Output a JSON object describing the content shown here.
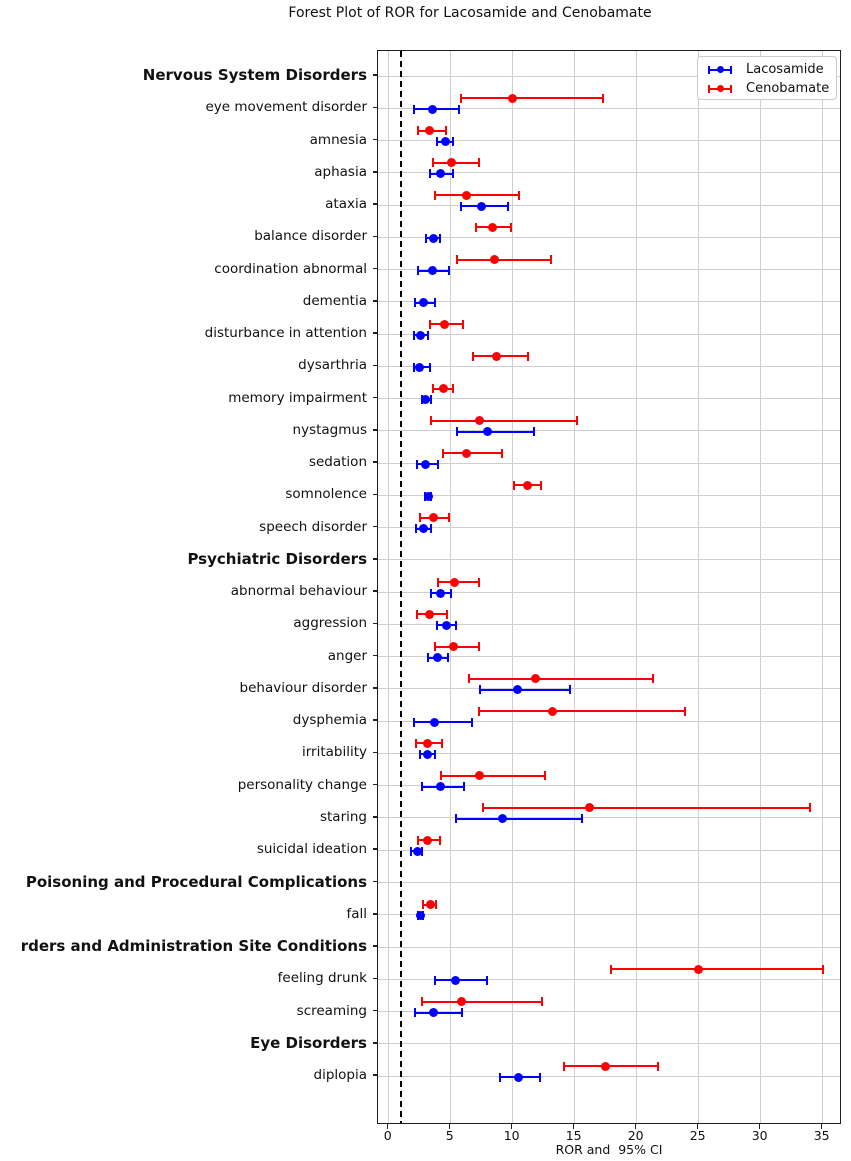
{
  "chart_data": {
    "type": "scatter",
    "variant": "forest-plot-errorbars",
    "title": "Forest Plot of ROR for Lacosamide and Cenobamate",
    "xlabel": "ROR and  95% CI",
    "xticks": [
      0,
      5,
      10,
      15,
      20,
      25,
      30,
      35
    ],
    "xlim": [
      -0.9,
      36.6
    ],
    "reference_line_x": 1,
    "grid": true,
    "legend_position": "top-right",
    "legend": {
      "items": [
        {
          "label": "Lacosamide",
          "color": "#0000ff"
        },
        {
          "label": "Cenobamate",
          "color": "#ff0000"
        }
      ]
    },
    "rows": [
      {
        "label": "Nervous System Disorders",
        "header": true,
        "lacosamide": null,
        "cenobamate": null
      },
      {
        "label": "eye movement disorder",
        "header": false,
        "lacosamide": {
          "ror": 3.5,
          "lo": 2.0,
          "hi": 5.7
        },
        "cenobamate": {
          "ror": 10.0,
          "lo": 5.8,
          "hi": 17.3
        }
      },
      {
        "label": "amnesia",
        "header": false,
        "lacosamide": {
          "ror": 4.6,
          "lo": 3.9,
          "hi": 5.2
        },
        "cenobamate": {
          "ror": 3.3,
          "lo": 2.4,
          "hi": 4.6
        }
      },
      {
        "label": "aphasia",
        "header": false,
        "lacosamide": {
          "ror": 4.2,
          "lo": 3.3,
          "hi": 5.2
        },
        "cenobamate": {
          "ror": 5.1,
          "lo": 3.6,
          "hi": 7.3
        }
      },
      {
        "label": "ataxia",
        "header": false,
        "lacosamide": {
          "ror": 7.5,
          "lo": 5.8,
          "hi": 9.6
        },
        "cenobamate": {
          "ror": 6.3,
          "lo": 3.7,
          "hi": 10.5
        }
      },
      {
        "label": "balance disorder",
        "header": false,
        "lacosamide": {
          "ror": 3.6,
          "lo": 3.0,
          "hi": 4.1
        },
        "cenobamate": {
          "ror": 8.4,
          "lo": 7.0,
          "hi": 9.9
        }
      },
      {
        "label": "coordination abnormal",
        "header": false,
        "lacosamide": {
          "ror": 3.5,
          "lo": 2.4,
          "hi": 4.9
        },
        "cenobamate": {
          "ror": 8.5,
          "lo": 5.5,
          "hi": 13.1
        }
      },
      {
        "label": "dementia",
        "header": false,
        "lacosamide": {
          "ror": 2.8,
          "lo": 2.1,
          "hi": 3.7
        },
        "cenobamate": null
      },
      {
        "label": "disturbance in attention",
        "header": false,
        "lacosamide": {
          "ror": 2.6,
          "lo": 2.0,
          "hi": 3.2
        },
        "cenobamate": {
          "ror": 4.5,
          "lo": 3.3,
          "hi": 6.0
        }
      },
      {
        "label": "dysarthria",
        "header": false,
        "lacosamide": {
          "ror": 2.5,
          "lo": 2.0,
          "hi": 3.3
        },
        "cenobamate": {
          "ror": 8.7,
          "lo": 6.8,
          "hi": 11.2
        }
      },
      {
        "label": "memory impairment",
        "header": false,
        "lacosamide": {
          "ror": 3.0,
          "lo": 2.7,
          "hi": 3.4
        },
        "cenobamate": {
          "ror": 4.4,
          "lo": 3.6,
          "hi": 5.2
        }
      },
      {
        "label": "nystagmus",
        "header": false,
        "lacosamide": {
          "ror": 8.0,
          "lo": 5.5,
          "hi": 11.7
        },
        "cenobamate": {
          "ror": 7.3,
          "lo": 3.4,
          "hi": 15.2
        }
      },
      {
        "label": "sedation",
        "header": false,
        "lacosamide": {
          "ror": 3.0,
          "lo": 2.3,
          "hi": 4.0
        },
        "cenobamate": {
          "ror": 6.3,
          "lo": 4.4,
          "hi": 9.1
        }
      },
      {
        "label": "somnolence",
        "header": false,
        "lacosamide": {
          "ror": 3.2,
          "lo": 2.9,
          "hi": 3.4
        },
        "cenobamate": {
          "ror": 11.2,
          "lo": 10.1,
          "hi": 12.3
        }
      },
      {
        "label": "speech disorder",
        "header": false,
        "lacosamide": {
          "ror": 2.8,
          "lo": 2.2,
          "hi": 3.4
        },
        "cenobamate": {
          "ror": 3.6,
          "lo": 2.5,
          "hi": 4.9
        }
      },
      {
        "label": "Psychiatric Disorders",
        "header": true,
        "lacosamide": null,
        "cenobamate": null
      },
      {
        "label": "abnormal behaviour",
        "header": false,
        "lacosamide": {
          "ror": 4.2,
          "lo": 3.4,
          "hi": 5.0
        },
        "cenobamate": {
          "ror": 5.3,
          "lo": 4.0,
          "hi": 7.3
        }
      },
      {
        "label": "aggression",
        "header": false,
        "lacosamide": {
          "ror": 4.7,
          "lo": 3.9,
          "hi": 5.4
        },
        "cenobamate": {
          "ror": 3.3,
          "lo": 2.3,
          "hi": 4.7
        }
      },
      {
        "label": "anger",
        "header": false,
        "lacosamide": {
          "ror": 3.9,
          "lo": 3.2,
          "hi": 4.8
        },
        "cenobamate": {
          "ror": 5.2,
          "lo": 3.7,
          "hi": 7.3
        }
      },
      {
        "label": "behaviour disorder",
        "header": false,
        "lacosamide": {
          "ror": 10.4,
          "lo": 7.4,
          "hi": 14.6
        },
        "cenobamate": {
          "ror": 11.8,
          "lo": 6.5,
          "hi": 21.3
        }
      },
      {
        "label": "dysphemia",
        "header": false,
        "lacosamide": {
          "ror": 3.7,
          "lo": 2.0,
          "hi": 6.7
        },
        "cenobamate": {
          "ror": 13.2,
          "lo": 7.3,
          "hi": 23.9
        }
      },
      {
        "label": "irritability",
        "header": false,
        "lacosamide": {
          "ror": 3.1,
          "lo": 2.5,
          "hi": 3.7
        },
        "cenobamate": {
          "ror": 3.1,
          "lo": 2.2,
          "hi": 4.3
        }
      },
      {
        "label": "personality change",
        "header": false,
        "lacosamide": {
          "ror": 4.2,
          "lo": 2.7,
          "hi": 6.1
        },
        "cenobamate": {
          "ror": 7.3,
          "lo": 4.2,
          "hi": 12.6
        }
      },
      {
        "label": "staring",
        "header": false,
        "lacosamide": {
          "ror": 9.2,
          "lo": 5.4,
          "hi": 15.6
        },
        "cenobamate": {
          "ror": 16.2,
          "lo": 7.6,
          "hi": 34.0
        }
      },
      {
        "label": "suicidal ideation",
        "header": false,
        "lacosamide": {
          "ror": 2.3,
          "lo": 1.8,
          "hi": 2.7
        },
        "cenobamate": {
          "ror": 3.1,
          "lo": 2.4,
          "hi": 4.1
        }
      },
      {
        "label": "Poisoning and Procedural Complications",
        "header": true,
        "lacosamide": null,
        "cenobamate": null
      },
      {
        "label": "fall",
        "header": false,
        "lacosamide": {
          "ror": 2.6,
          "lo": 2.4,
          "hi": 2.8
        },
        "cenobamate": {
          "ror": 3.4,
          "lo": 2.8,
          "hi": 3.8
        }
      },
      {
        "label": "rders and Administration Site Conditions",
        "header": true,
        "lacosamide": null,
        "cenobamate": null
      },
      {
        "label": "feeling drunk",
        "header": false,
        "lacosamide": {
          "ror": 5.4,
          "lo": 3.7,
          "hi": 7.9
        },
        "cenobamate": {
          "ror": 25.0,
          "lo": 17.9,
          "hi": 35.0
        }
      },
      {
        "label": "screaming",
        "header": false,
        "lacosamide": {
          "ror": 3.6,
          "lo": 2.1,
          "hi": 5.9
        },
        "cenobamate": {
          "ror": 5.9,
          "lo": 2.7,
          "hi": 12.4
        }
      },
      {
        "label": "Eye Disorders",
        "header": true,
        "lacosamide": null,
        "cenobamate": null
      },
      {
        "label": "diplopia",
        "header": false,
        "lacosamide": {
          "ror": 10.5,
          "lo": 9.0,
          "hi": 12.2
        },
        "cenobamate": {
          "ror": 17.5,
          "lo": 14.1,
          "hi": 21.7
        }
      }
    ]
  }
}
